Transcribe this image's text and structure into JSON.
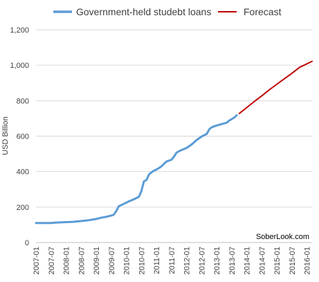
{
  "chart_data": {
    "type": "line",
    "xlabel": "",
    "ylabel": "USD Billion",
    "ylim": [
      0,
      1200
    ],
    "yticks": [
      0,
      200,
      400,
      600,
      800,
      1000,
      1200
    ],
    "ytick_labels": [
      "0",
      "200",
      "400",
      "600",
      "800",
      "1,000",
      "1,200"
    ],
    "xlim": [
      "2007-01",
      "2016-03"
    ],
    "xtick_labels": [
      "2007-01",
      "2007-07",
      "2008-01",
      "2008-07",
      "2009-01",
      "2009-07",
      "2010-01",
      "2010-07",
      "2011-01",
      "2011-07",
      "2012-01",
      "2012-07",
      "2013-01",
      "2013-07",
      "2014-01",
      "2014-07",
      "2015-01",
      "2015-07",
      "2016-01"
    ],
    "grid": "horizontal",
    "legend_position": "top",
    "watermark": "SoberLook.com",
    "series": [
      {
        "name": "Government-held studebt loans",
        "color": "#5b9bd5",
        "points": [
          [
            "2007-01",
            110
          ],
          [
            "2007-04",
            110
          ],
          [
            "2007-07",
            110
          ],
          [
            "2007-09",
            112
          ],
          [
            "2008-01",
            115
          ],
          [
            "2008-04",
            117
          ],
          [
            "2008-07",
            121
          ],
          [
            "2008-10",
            126
          ],
          [
            "2009-01",
            133
          ],
          [
            "2009-03",
            140
          ],
          [
            "2009-05",
            145
          ],
          [
            "2009-07",
            152
          ],
          [
            "2009-08",
            157
          ],
          [
            "2009-09",
            178
          ],
          [
            "2009-10",
            205
          ],
          [
            "2009-12",
            218
          ],
          [
            "2010-02",
            232
          ],
          [
            "2010-04",
            244
          ],
          [
            "2010-06",
            258
          ],
          [
            "2010-07",
            290
          ],
          [
            "2010-08",
            345
          ],
          [
            "2010-09",
            352
          ],
          [
            "2010-10",
            383
          ],
          [
            "2010-11",
            396
          ],
          [
            "2010-12",
            405
          ],
          [
            "2011-01",
            412
          ],
          [
            "2011-02",
            420
          ],
          [
            "2011-03",
            430
          ],
          [
            "2011-04",
            444
          ],
          [
            "2011-05",
            457
          ],
          [
            "2011-07",
            467
          ],
          [
            "2011-08",
            485
          ],
          [
            "2011-09",
            507
          ],
          [
            "2011-10",
            515
          ],
          [
            "2011-11",
            522
          ],
          [
            "2012-01",
            533
          ],
          [
            "2012-03",
            553
          ],
          [
            "2012-05",
            578
          ],
          [
            "2012-07",
            598
          ],
          [
            "2012-09",
            612
          ],
          [
            "2012-10",
            638
          ],
          [
            "2012-11",
            650
          ],
          [
            "2013-01",
            660
          ],
          [
            "2013-03",
            668
          ],
          [
            "2013-05",
            676
          ],
          [
            "2013-06",
            688
          ],
          [
            "2013-08",
            705
          ],
          [
            "2013-09",
            718
          ]
        ]
      },
      {
        "name": "Forecast",
        "color": "#c00000",
        "points": [
          [
            "2013-10",
            728
          ],
          [
            "2014-01",
            762
          ],
          [
            "2014-04",
            796
          ],
          [
            "2014-07",
            828
          ],
          [
            "2014-10",
            862
          ],
          [
            "2015-01",
            893
          ],
          [
            "2015-04",
            924
          ],
          [
            "2015-07",
            955
          ],
          [
            "2015-10",
            988
          ],
          [
            "2016-03",
            1022
          ]
        ]
      }
    ]
  }
}
